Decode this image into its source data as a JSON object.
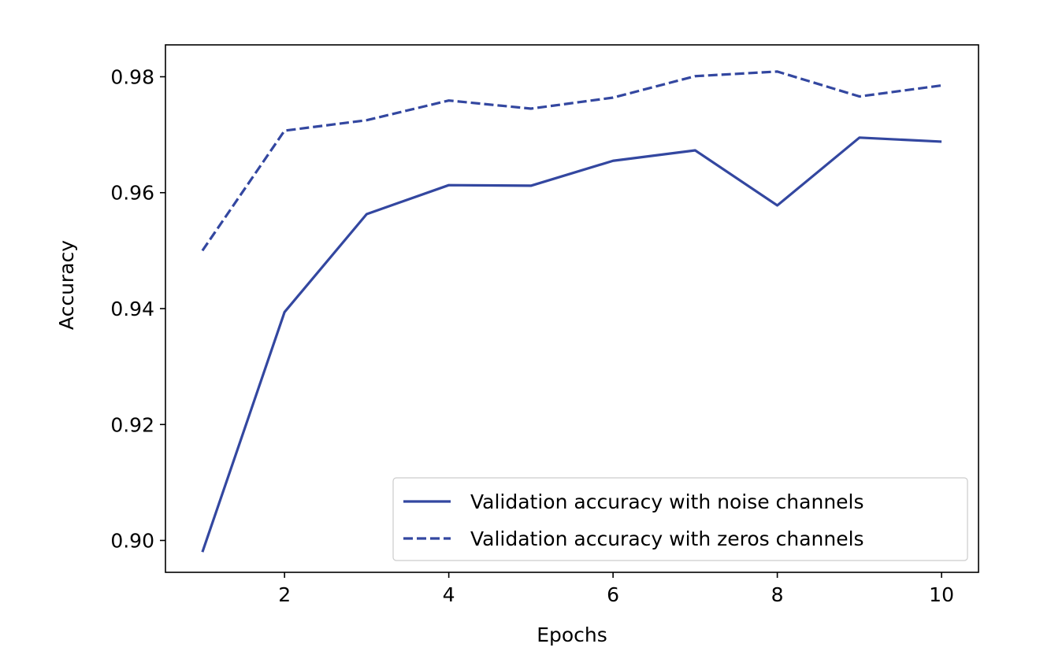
{
  "chart_data": {
    "type": "line",
    "title": "",
    "xlabel": "Epochs",
    "ylabel": "Accuracy",
    "x": [
      1,
      2,
      3,
      4,
      5,
      6,
      7,
      8,
      9,
      10
    ],
    "xlim": [
      0.55,
      10.45
    ],
    "ylim": [
      0.8945,
      0.9855
    ],
    "xticks": [
      2,
      4,
      6,
      8,
      10
    ],
    "xtick_labels": [
      "2",
      "4",
      "6",
      "8",
      "10"
    ],
    "yticks": [
      0.9,
      0.92,
      0.94,
      0.96,
      0.98
    ],
    "ytick_labels": [
      "0.90",
      "0.92",
      "0.94",
      "0.96",
      "0.98"
    ],
    "grid": false,
    "legend_position": "bottom-right",
    "series": [
      {
        "name": "Validation accuracy with noise channels",
        "style": "solid",
        "color": "#3347a0",
        "values": [
          0.898,
          0.9394,
          0.9563,
          0.9613,
          0.9612,
          0.9655,
          0.9673,
          0.9578,
          0.9695,
          0.9688
        ]
      },
      {
        "name": "Validation accuracy with zeros channels",
        "style": "dashed",
        "color": "#3347a0",
        "values": [
          0.95,
          0.9707,
          0.9725,
          0.9759,
          0.9745,
          0.9764,
          0.9801,
          0.9809,
          0.9766,
          0.9785
        ]
      }
    ]
  }
}
